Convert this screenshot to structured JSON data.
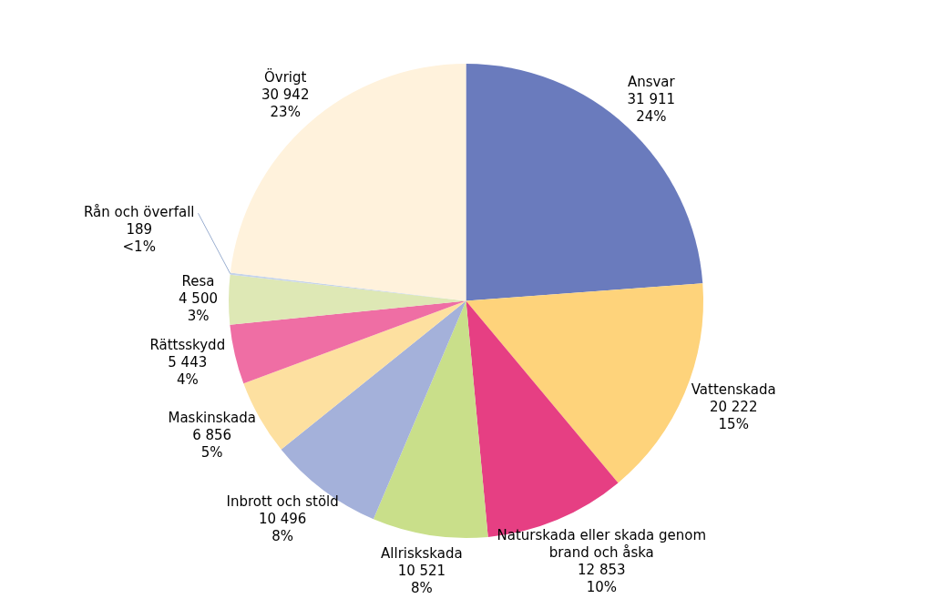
{
  "chart_data": {
    "type": "pie",
    "categories": [
      "Ansvar",
      "Vattenskada",
      "Naturskada eller skada genom brand och åska",
      "Allriskskada",
      "Inbrott och stöld",
      "Maskinskada",
      "Rättsskydd",
      "Resa",
      "Rån och överfall",
      "Övrigt"
    ],
    "values": [
      31911,
      20222,
      12853,
      10521,
      10496,
      6856,
      5443,
      4500,
      189,
      30942
    ],
    "value_labels": [
      "31 911",
      "20 222",
      "12 853",
      "10 521",
      "10 496",
      "6 856",
      "5 443",
      "4 500",
      "189",
      "30 942"
    ],
    "percentages": [
      24,
      15,
      10,
      8,
      8,
      5,
      4,
      3,
      0.1,
      23
    ],
    "percentage_labels": [
      "24%",
      "15%",
      "10%",
      "8%",
      "8%",
      "5%",
      "4%",
      "3%",
      "<1%",
      "23%"
    ],
    "colors": [
      "#6a7bbd",
      "#fed37b",
      "#e63f83",
      "#c9df8a",
      "#a4b1da",
      "#fde0a0",
      "#ef6ea4",
      "#dee8b5",
      "#c6d4ea",
      "#fff2dc"
    ],
    "data_labels": true
  }
}
